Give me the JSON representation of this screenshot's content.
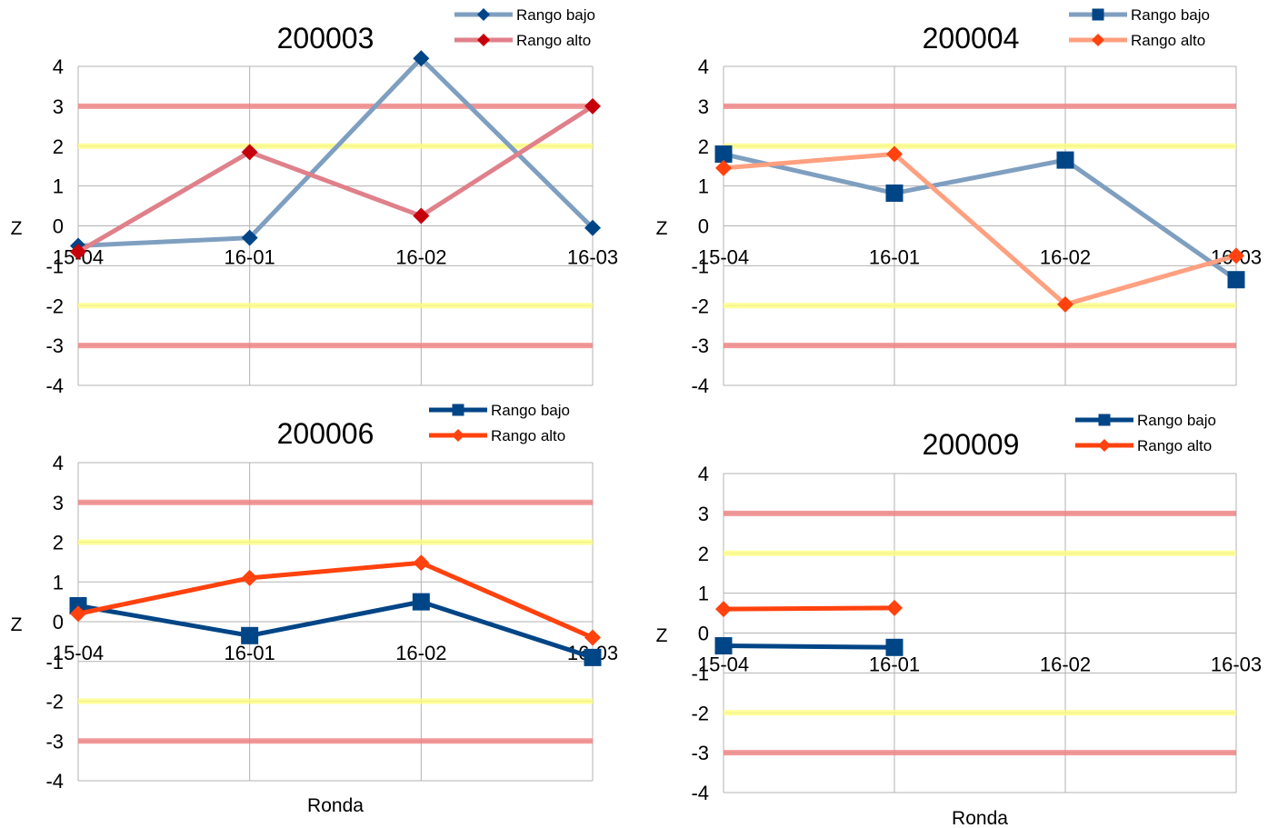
{
  "chart_data": [
    {
      "type": "line",
      "title": "200003",
      "ylabel": "Z",
      "xlabel": "",
      "categories": [
        "15-04",
        "16-01",
        "16-02",
        "16-03"
      ],
      "ylim": [
        -4,
        4
      ],
      "yticks": [
        4,
        3,
        2,
        1,
        0,
        -1,
        -2,
        -3,
        -4
      ],
      "reference_lines": [
        {
          "y": 3,
          "color": "#f08080"
        },
        {
          "y": 2,
          "color": "#ffff80"
        },
        {
          "y": -2,
          "color": "#ffff80"
        },
        {
          "y": -3,
          "color": "#f08080"
        }
      ],
      "series": [
        {
          "name": "Rango bajo",
          "values": [
            -0.5,
            -0.3,
            4.2,
            -0.05
          ],
          "color": "#7f9fc0",
          "marker": "diamond",
          "marker_color": "#004586"
        },
        {
          "name": "Rango alto",
          "values": [
            -0.65,
            1.85,
            0.25,
            3.0
          ],
          "color": "#e0808a",
          "marker": "diamond",
          "marker_color": "#c5000b"
        }
      ],
      "legend": "top-right"
    },
    {
      "type": "line",
      "title": "200004",
      "ylabel": "Z",
      "xlabel": "",
      "categories": [
        "15-04",
        "16-01",
        "16-02",
        "16-03"
      ],
      "ylim": [
        -4,
        4
      ],
      "yticks": [
        4,
        3,
        2,
        1,
        0,
        -1,
        -2,
        -3,
        -4
      ],
      "reference_lines": [
        {
          "y": 3,
          "color": "#f08080"
        },
        {
          "y": 2,
          "color": "#ffff80"
        },
        {
          "y": -2,
          "color": "#ffff80"
        },
        {
          "y": -3,
          "color": "#f08080"
        }
      ],
      "series": [
        {
          "name": "Rango bajo",
          "values": [
            1.8,
            0.82,
            1.65,
            -1.35
          ],
          "color": "#7f9fc0",
          "marker": "square",
          "marker_color": "#004586"
        },
        {
          "name": "Rango alto",
          "values": [
            1.45,
            1.8,
            -1.97,
            -0.75
          ],
          "color": "#ffa080",
          "marker": "diamond",
          "marker_color": "#ff420e"
        }
      ],
      "legend": "top-right"
    },
    {
      "type": "line",
      "title": "200006",
      "ylabel": "Z",
      "xlabel": "Ronda",
      "categories": [
        "15-04",
        "16-01",
        "16-02",
        "16-03"
      ],
      "ylim": [
        -4,
        4
      ],
      "yticks": [
        4,
        3,
        2,
        1,
        0,
        -1,
        -2,
        -3,
        -4
      ],
      "reference_lines": [
        {
          "y": 3,
          "color": "#f08080"
        },
        {
          "y": 2,
          "color": "#ffff80"
        },
        {
          "y": -2,
          "color": "#ffff80"
        },
        {
          "y": -3,
          "color": "#f08080"
        }
      ],
      "series": [
        {
          "name": "Rango bajo",
          "values": [
            0.4,
            -0.35,
            0.5,
            -0.9
          ],
          "color": "#004586",
          "marker": "square",
          "marker_color": "#004586"
        },
        {
          "name": "Rango alto",
          "values": [
            0.2,
            1.1,
            1.48,
            -0.4
          ],
          "color": "#ff420e",
          "marker": "diamond",
          "marker_color": "#ff420e"
        }
      ],
      "legend": "top-right"
    },
    {
      "type": "line",
      "title": "200009",
      "ylabel": "Z",
      "xlabel": "Ronda",
      "categories": [
        "15-04",
        "16-01",
        "16-02",
        "16-03"
      ],
      "ylim": [
        -4,
        4
      ],
      "yticks": [
        4,
        3,
        2,
        1,
        0,
        -1,
        -2,
        -3,
        -4
      ],
      "reference_lines": [
        {
          "y": 3,
          "color": "#f08080"
        },
        {
          "y": 2,
          "color": "#ffff80"
        },
        {
          "y": -2,
          "color": "#ffff80"
        },
        {
          "y": -3,
          "color": "#f08080"
        }
      ],
      "series": [
        {
          "name": "Rango bajo",
          "values": [
            -0.32,
            -0.36,
            null,
            null
          ],
          "color": "#004586",
          "marker": "square",
          "marker_color": "#004586"
        },
        {
          "name": "Rango alto",
          "values": [
            0.6,
            0.63,
            null,
            null
          ],
          "color": "#ff420e",
          "marker": "diamond",
          "marker_color": "#ff420e"
        }
      ],
      "legend": "top-right"
    }
  ]
}
